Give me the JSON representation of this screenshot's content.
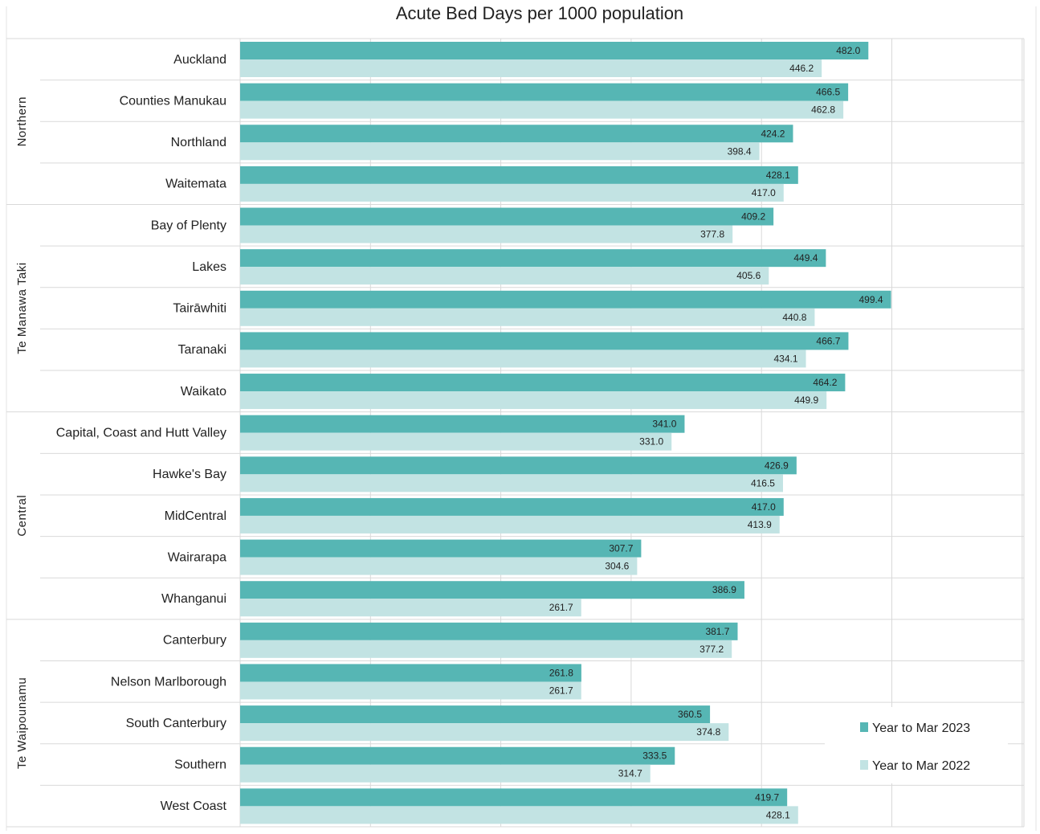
{
  "chart_data": {
    "type": "bar",
    "orientation": "horizontal",
    "title": "Acute Bed Days per 1000 population",
    "xlim": [
      0,
      600
    ],
    "grid": true,
    "legend_position": "bottom-right",
    "groups": [
      {
        "name": "Northern",
        "categories": [
          "Auckland",
          "Counties Manukau",
          "Northland",
          "Waitemata"
        ]
      },
      {
        "name": "Te Manawa Taki",
        "categories": [
          "Bay of Plenty",
          "Lakes",
          "Tairāwhiti",
          "Taranaki",
          "Waikato"
        ]
      },
      {
        "name": "Central",
        "categories": [
          "Capital, Coast and Hutt Valley",
          "Hawke's Bay",
          "MidCentral",
          "Wairarapa",
          "Whanganui"
        ]
      },
      {
        "name": "Te Waipounamu",
        "categories": [
          "Canterbury",
          "Nelson Marlborough",
          "South Canterbury",
          "Southern",
          "West Coast"
        ]
      }
    ],
    "categories": [
      "Auckland",
      "Counties Manukau",
      "Northland",
      "Waitemata",
      "Bay of Plenty",
      "Lakes",
      "Tairāwhiti",
      "Taranaki",
      "Waikato",
      "Capital, Coast and Hutt Valley",
      "Hawke's Bay",
      "MidCentral",
      "Wairarapa",
      "Whanganui",
      "Canterbury",
      "Nelson Marlborough",
      "South Canterbury",
      "Southern",
      "West Coast"
    ],
    "series": [
      {
        "name": "Year to Mar 2023",
        "color": "#56B6B4",
        "values": [
          482.0,
          466.5,
          424.2,
          428.1,
          409.2,
          449.4,
          499.4,
          466.7,
          464.2,
          341.0,
          426.9,
          417.0,
          307.7,
          386.9,
          381.7,
          261.8,
          360.5,
          333.5,
          419.7
        ]
      },
      {
        "name": "Year to Mar 2022",
        "color": "#C2E3E3",
        "values": [
          446.2,
          462.8,
          398.4,
          417.0,
          377.8,
          405.6,
          440.8,
          434.1,
          449.9,
          331.0,
          416.5,
          413.9,
          304.6,
          261.7,
          377.2,
          261.7,
          374.8,
          314.7,
          428.1
        ]
      }
    ]
  }
}
